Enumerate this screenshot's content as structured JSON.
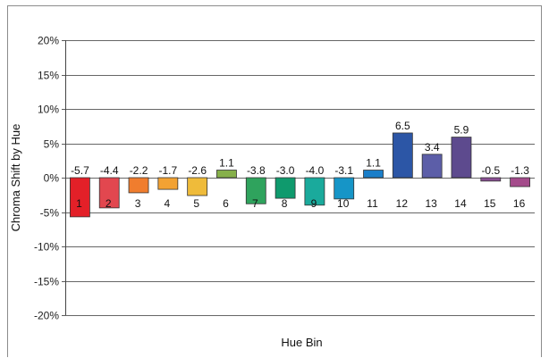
{
  "chart_data": {
    "type": "bar",
    "title": "",
    "xlabel": "Hue Bin",
    "ylabel": "Chroma Shift by Hue",
    "ylim": [
      -20,
      20
    ],
    "yticks": [
      20,
      15,
      10,
      5,
      0,
      -5,
      -10,
      -15,
      -20
    ],
    "ytick_suffix": "%",
    "grid": true,
    "categories": [
      "1",
      "2",
      "3",
      "4",
      "5",
      "6",
      "7",
      "8",
      "9",
      "10",
      "11",
      "12",
      "13",
      "14",
      "15",
      "16"
    ],
    "values": [
      -5.7,
      -4.4,
      -2.2,
      -1.7,
      -2.6,
      1.1,
      -3.8,
      -3.0,
      -4.0,
      -3.1,
      1.1,
      6.5,
      3.4,
      5.9,
      -0.5,
      -1.3
    ],
    "colors": [
      "#e32028",
      "#e2474f",
      "#f07d2e",
      "#f2a233",
      "#efbb3a",
      "#86b04a",
      "#2fa35d",
      "#0f9a6d",
      "#1aaa9c",
      "#1695c7",
      "#1a7ec9",
      "#2c56a6",
      "#5c5ea8",
      "#5d4a8e",
      "#8a4f93",
      "#a44b8b"
    ]
  }
}
